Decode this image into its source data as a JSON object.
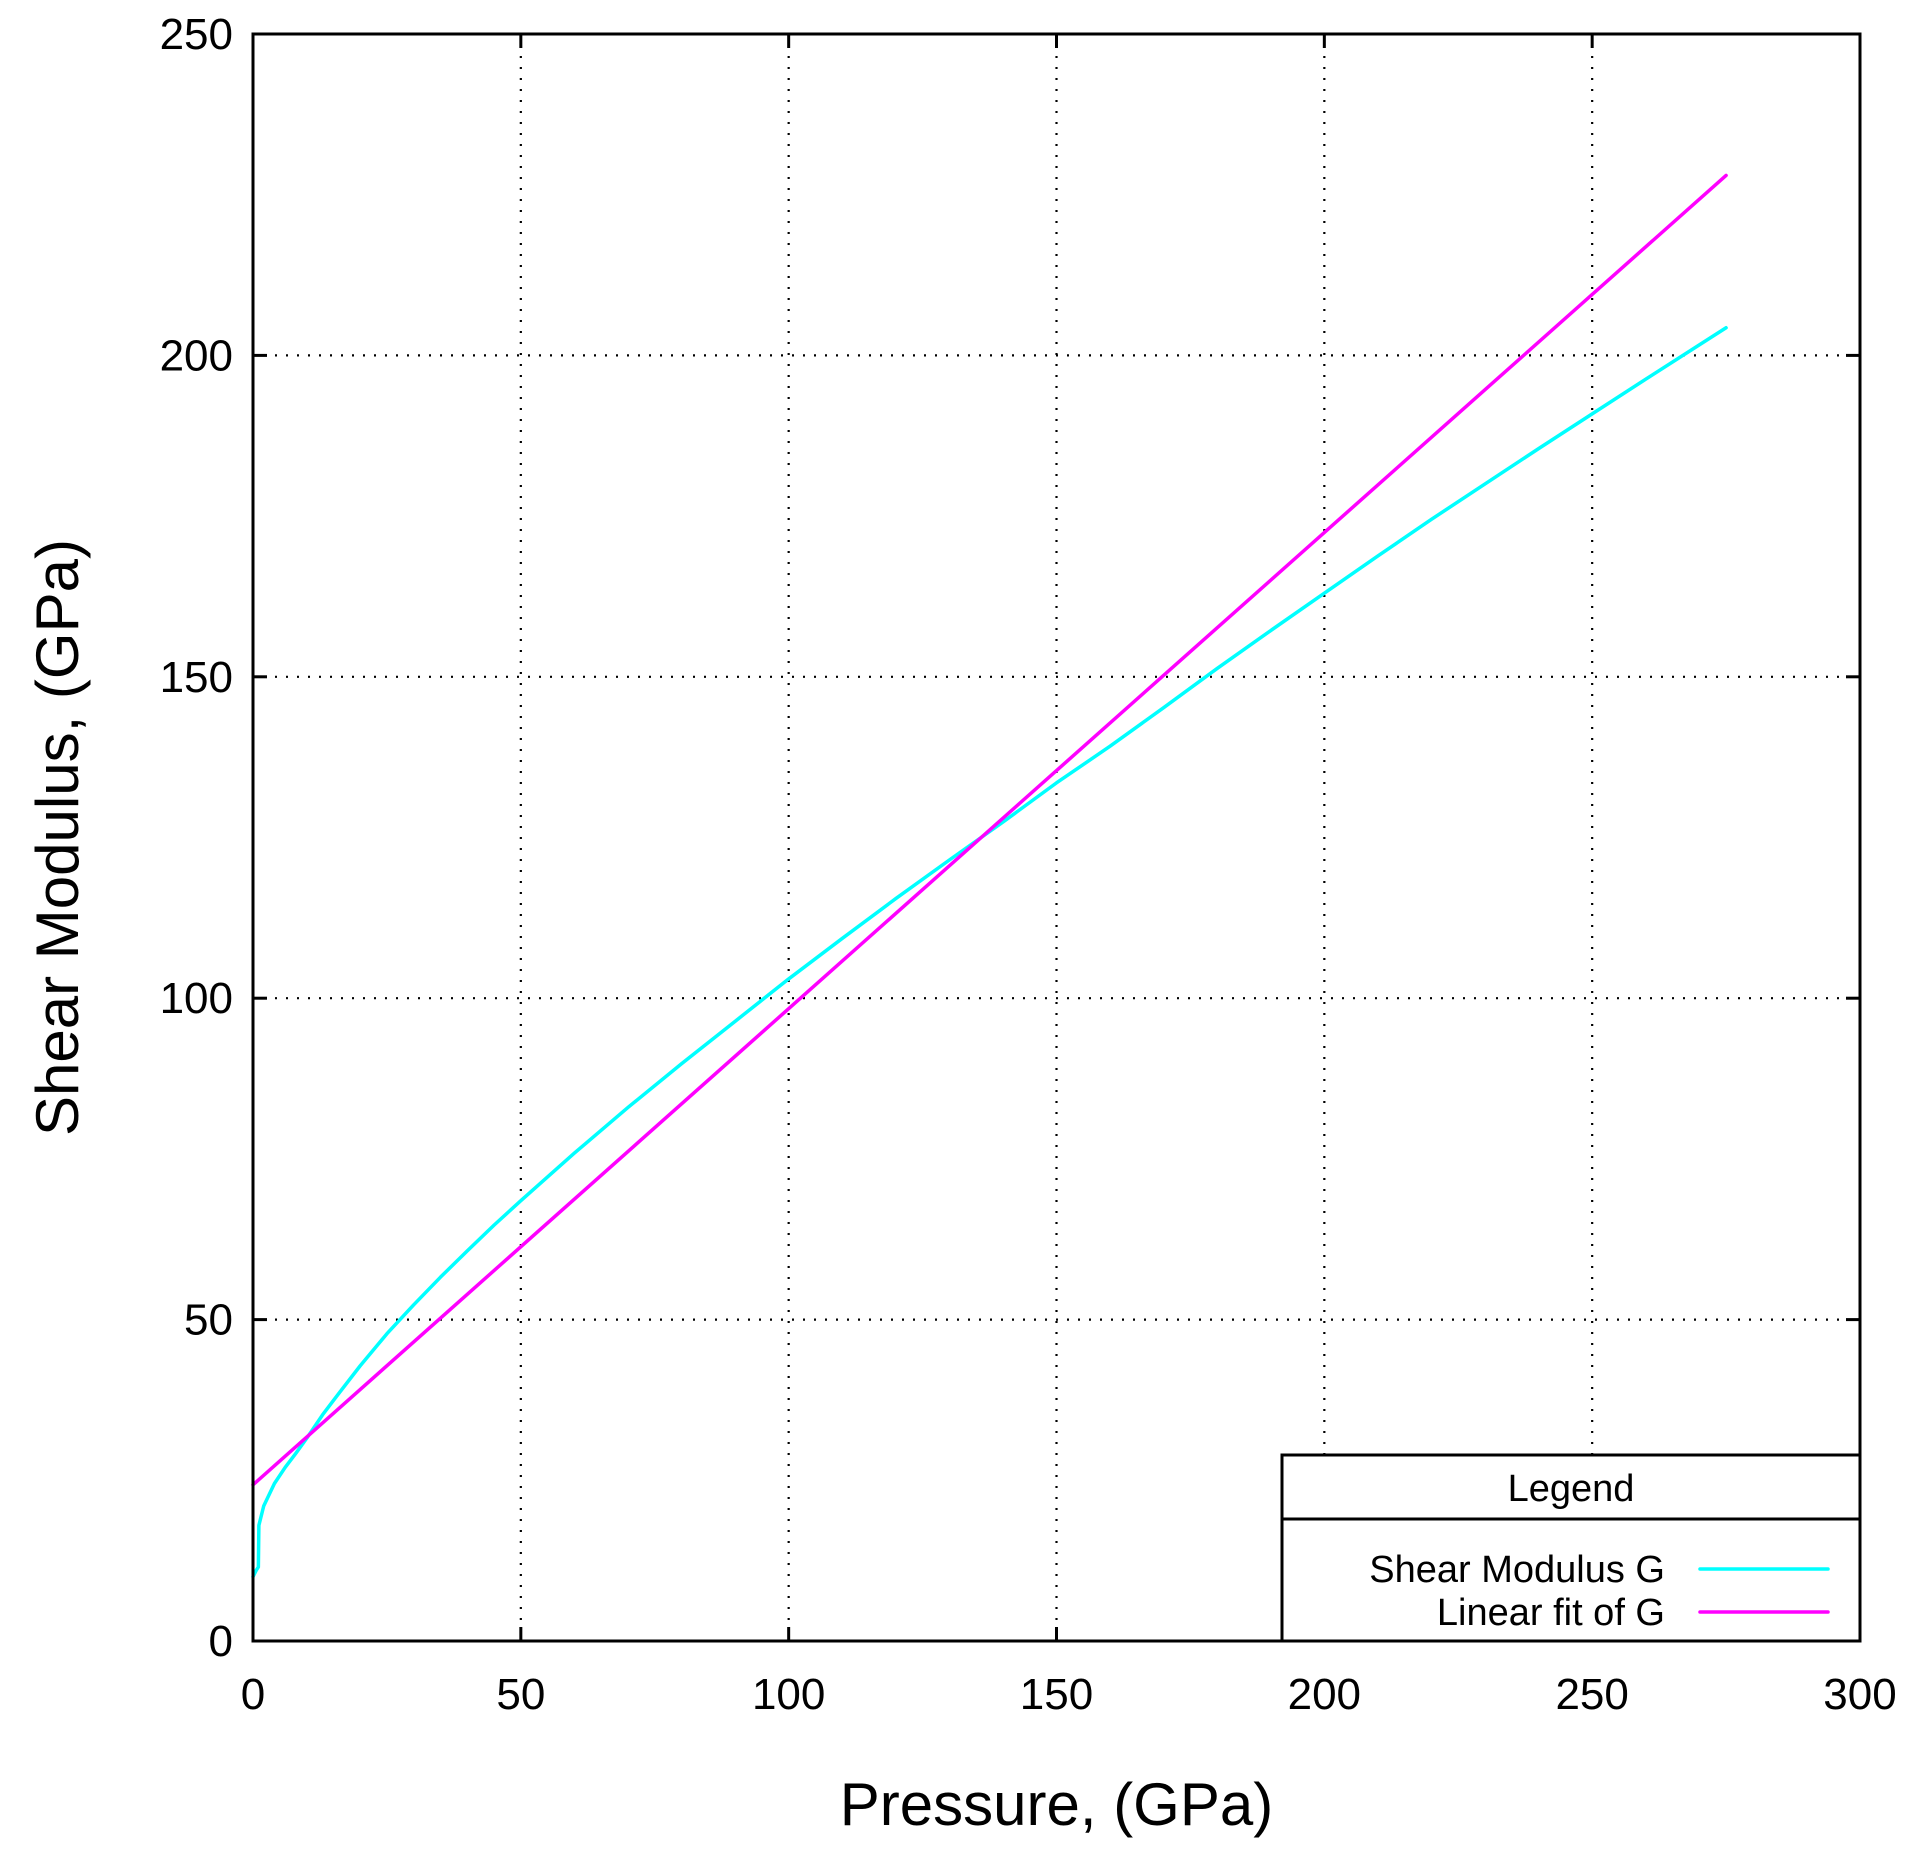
{
  "chart_data": {
    "type": "line",
    "title": "",
    "xlabel": "Pressure, (GPa)",
    "ylabel": "Shear Modulus, (GPa)",
    "xlim": [
      0,
      300
    ],
    "ylim": [
      0,
      250
    ],
    "xticks": [
      0,
      50,
      100,
      150,
      200,
      250,
      300
    ],
    "yticks": [
      0,
      50,
      100,
      150,
      200,
      250
    ],
    "xtick_labels": [
      "0",
      "50",
      "100",
      "150",
      "200",
      "250",
      "300"
    ],
    "ytick_labels": [
      "0",
      "50",
      "100",
      "150",
      "200",
      "250"
    ],
    "grid": true,
    "legend": {
      "title": "Legend",
      "placement": "bottom-right"
    },
    "series": [
      {
        "name": "Shear Modulus G",
        "color": "#00ffff",
        "x": [
          0,
          0.6,
          1,
          1.1,
          2,
          4,
          6,
          8,
          10,
          13,
          16,
          20,
          25,
          30,
          35,
          40,
          45,
          50,
          60,
          70,
          80,
          90,
          100,
          110,
          120,
          130,
          140,
          150,
          160,
          170,
          180,
          190,
          200,
          210,
          220,
          230,
          240,
          250,
          260,
          275
        ],
        "y": [
          10,
          11,
          11.5,
          18,
          21,
          24.5,
          27,
          29.2,
          31.5,
          35.2,
          38.5,
          42.8,
          47.8,
          52.3,
          56.6,
          60.7,
          64.7,
          68.5,
          75.9,
          83,
          89.8,
          96.4,
          103,
          109.3,
          115.5,
          121.5,
          127.4,
          133.5,
          139.2,
          145.2,
          151.3,
          157.2,
          163,
          168.8,
          174.5,
          180,
          185.5,
          190.9,
          196.3,
          204.3
        ]
      },
      {
        "name": "Linear fit of G",
        "color": "#ff00ff",
        "x": [
          0,
          275
        ],
        "y": [
          24.3,
          228
        ]
      }
    ]
  }
}
